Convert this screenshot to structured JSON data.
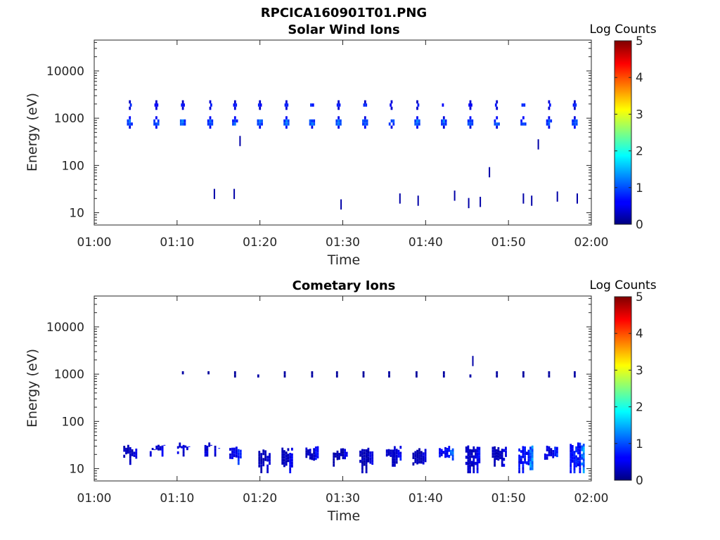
{
  "figure": {
    "filename": "RPCICA160901T01.PNG"
  },
  "chart_data": [
    {
      "type": "heatmap",
      "title": "Solar Wind Ions",
      "xlabel": "Time",
      "ylabel": "Energy (eV)",
      "x_range": [
        "01:00",
        "02:00"
      ],
      "x_ticks": [
        "01:00",
        "01:10",
        "01:20",
        "01:30",
        "01:40",
        "01:50",
        "02:00"
      ],
      "y_scale": "log",
      "y_range": [
        5.5,
        45000
      ],
      "y_ticks": [
        "10",
        "100",
        "1000",
        "10000"
      ],
      "grid": false,
      "colorbar": {
        "label": "Log Counts",
        "range": [
          0,
          5
        ],
        "ticks": [
          "0",
          "1",
          "2",
          "3",
          "4",
          "5"
        ],
        "colormap": "jet"
      },
      "sweep_times_min": [
        4.3,
        7.5,
        10.7,
        14.0,
        17.0,
        20.0,
        23.2,
        26.3,
        29.5,
        32.7,
        35.9,
        39.0,
        42.2,
        45.4,
        48.6,
        51.8,
        54.9,
        58.0
      ],
      "clusters": [
        {
          "energy_range_eV": [
            600,
            1100
          ],
          "peak_log_counts": 1.5
        },
        {
          "energy_range_eV": [
            1500,
            2400
          ],
          "peak_log_counts": 0.9
        }
      ],
      "isolated_points": [
        {
          "t_min": 14.5,
          "energy_eV": 25,
          "log_counts": 0.2
        },
        {
          "t_min": 16.9,
          "energy_eV": 25,
          "log_counts": 0.2
        },
        {
          "t_min": 17.6,
          "energy_eV": 330,
          "log_counts": 0.2
        },
        {
          "t_min": 29.8,
          "energy_eV": 15,
          "log_counts": 0.2
        },
        {
          "t_min": 36.9,
          "energy_eV": 20,
          "log_counts": 0.2
        },
        {
          "t_min": 39.1,
          "energy_eV": 18,
          "log_counts": 0.2
        },
        {
          "t_min": 43.5,
          "energy_eV": 23,
          "log_counts": 0.2
        },
        {
          "t_min": 45.2,
          "energy_eV": 16,
          "log_counts": 0.2
        },
        {
          "t_min": 46.6,
          "energy_eV": 17,
          "log_counts": 0.2
        },
        {
          "t_min": 47.7,
          "energy_eV": 72,
          "log_counts": 0.2
        },
        {
          "t_min": 51.8,
          "energy_eV": 20,
          "log_counts": 0.2
        },
        {
          "t_min": 52.8,
          "energy_eV": 18,
          "log_counts": 0.2
        },
        {
          "t_min": 53.6,
          "energy_eV": 280,
          "log_counts": 0.2
        },
        {
          "t_min": 55.9,
          "energy_eV": 22,
          "log_counts": 0.2
        },
        {
          "t_min": 58.3,
          "energy_eV": 20,
          "log_counts": 0.2
        }
      ]
    },
    {
      "type": "heatmap",
      "title": "Cometary Ions",
      "xlabel": "Time",
      "ylabel": "Energy (eV)",
      "x_range": [
        "01:00",
        "02:00"
      ],
      "x_ticks": [
        "01:00",
        "01:10",
        "01:20",
        "01:30",
        "01:40",
        "01:50",
        "02:00"
      ],
      "y_scale": "log",
      "y_range": [
        5.5,
        45000
      ],
      "y_ticks": [
        "10",
        "100",
        "1000",
        "10000"
      ],
      "grid": false,
      "colorbar": {
        "label": "Log Counts",
        "range": [
          0,
          5
        ],
        "ticks": [
          "0",
          "1",
          "2",
          "3",
          "4",
          "5"
        ],
        "colormap": "jet"
      },
      "low_energy_blocks": [
        {
          "t_start": 3.5,
          "t_end": 5.2,
          "energy_range_eV": [
            12,
            33
          ],
          "peak_log_counts": 0.7
        },
        {
          "t_start": 6.7,
          "t_end": 8.6,
          "energy_range_eV": [
            18,
            33
          ],
          "peak_log_counts": 0.8
        },
        {
          "t_start": 10.0,
          "t_end": 11.8,
          "energy_range_eV": [
            18,
            36
          ],
          "peak_log_counts": 1.0
        },
        {
          "t_start": 13.3,
          "t_end": 15.2,
          "energy_range_eV": [
            18,
            36
          ],
          "peak_log_counts": 1.0
        },
        {
          "t_start": 16.3,
          "t_end": 17.8,
          "energy_range_eV": [
            12,
            33
          ],
          "peak_log_counts": 1.1
        },
        {
          "t_start": 19.8,
          "t_end": 21.3,
          "energy_range_eV": [
            8,
            28
          ],
          "peak_log_counts": 0.6
        },
        {
          "t_start": 22.6,
          "t_end": 24.0,
          "energy_range_eV": [
            8,
            28
          ],
          "peak_log_counts": 0.7
        },
        {
          "t_start": 25.5,
          "t_end": 27.1,
          "energy_range_eV": [
            11,
            32
          ],
          "peak_log_counts": 0.8
        },
        {
          "t_start": 28.8,
          "t_end": 30.6,
          "energy_range_eV": [
            11,
            28
          ],
          "peak_log_counts": 0.6
        },
        {
          "t_start": 32.0,
          "t_end": 33.7,
          "energy_range_eV": [
            8,
            30
          ],
          "peak_log_counts": 0.6
        },
        {
          "t_start": 35.2,
          "t_end": 37.1,
          "energy_range_eV": [
            11,
            32
          ],
          "peak_log_counts": 0.8
        },
        {
          "t_start": 38.4,
          "t_end": 40.1,
          "energy_range_eV": [
            8,
            28
          ],
          "peak_log_counts": 0.6
        },
        {
          "t_start": 41.6,
          "t_end": 43.4,
          "energy_range_eV": [
            11,
            32
          ],
          "peak_log_counts": 1.4
        },
        {
          "t_start": 44.8,
          "t_end": 46.6,
          "energy_range_eV": [
            8,
            32
          ],
          "peak_log_counts": 0.8
        },
        {
          "t_start": 48.0,
          "t_end": 49.8,
          "energy_range_eV": [
            11,
            30
          ],
          "peak_log_counts": 0.7
        },
        {
          "t_start": 51.2,
          "t_end": 53.0,
          "energy_range_eV": [
            8,
            32
          ],
          "peak_log_counts": 1.5
        },
        {
          "t_start": 54.3,
          "t_end": 56.0,
          "energy_range_eV": [
            11,
            32
          ],
          "peak_log_counts": 1.0
        },
        {
          "t_start": 57.4,
          "t_end": 59.2,
          "energy_range_eV": [
            8,
            36
          ],
          "peak_log_counts": 1.6
        }
      ],
      "sweep_times_min": [
        10.7,
        13.8,
        17.0,
        19.8,
        23.0,
        26.3,
        29.3,
        32.5,
        35.6,
        38.9,
        42.2,
        45.4,
        48.6,
        51.8,
        54.9,
        58.0
      ],
      "high_energy_spots": {
        "energy_range_eV": [
          850,
          1150
        ],
        "peak_log_counts": 0.3
      },
      "isolated_points": [
        {
          "t_min": 45.7,
          "energy_eV": 1900,
          "log_counts": 0.2
        }
      ]
    }
  ]
}
